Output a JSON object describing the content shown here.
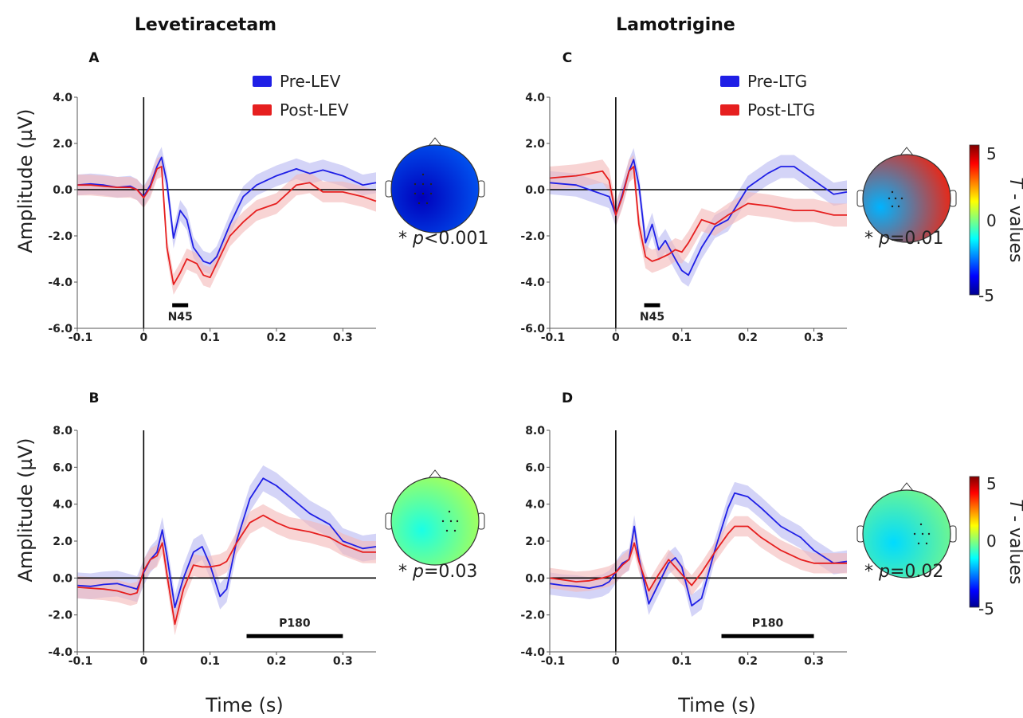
{
  "columns": {
    "left_title": "Levetiracetam",
    "right_title": "Lamotrigine"
  },
  "axis_titles": {
    "ylabel": "Amplitude (µV)",
    "xlabel": "Time (s)"
  },
  "colorbar": {
    "label_italic": "T",
    "label_rest": " - values",
    "ticks": [
      "5",
      "0",
      "-5"
    ],
    "range": [
      -5,
      5
    ]
  },
  "colors": {
    "pre": "#1f1fe6",
    "post": "#e61f1f",
    "pre_band": "#b8b8f2",
    "post_band": "#f4b8b8"
  },
  "chart_data": [
    {
      "panel": "A",
      "type": "line",
      "drug": "Levetiracetam",
      "xlim": [
        -0.1,
        0.35
      ],
      "ylim": [
        -6,
        4
      ],
      "xticks": [
        "-0.1",
        "0",
        "0.1",
        "0.2",
        "0.3"
      ],
      "yticks": [
        "4.0",
        "2.0",
        "0.0",
        "-2.0",
        "-4.0",
        "-6.0"
      ],
      "legend": [
        "Pre-LEV",
        "Post-LEV"
      ],
      "component": {
        "label": "N45",
        "start": 0.043,
        "end": 0.067
      },
      "pvalue": {
        "prefix": "* ",
        "p": "p",
        "rest": "<0.001"
      },
      "topo_t": -4.5,
      "series": [
        {
          "name": "Pre-LEV",
          "band": 0.45,
          "x": [
            -0.1,
            -0.08,
            -0.06,
            -0.04,
            -0.02,
            -0.01,
            0,
            0.01,
            0.02,
            0.027,
            0.035,
            0.045,
            0.055,
            0.065,
            0.075,
            0.09,
            0.1,
            0.11,
            0.13,
            0.15,
            0.17,
            0.2,
            0.23,
            0.25,
            0.27,
            0.3,
            0.33,
            0.35
          ],
          "y": [
            0.2,
            0.25,
            0.2,
            0.1,
            0.15,
            0,
            -0.3,
            0.2,
            1.0,
            1.4,
            0.3,
            -2.1,
            -0.9,
            -1.3,
            -2.5,
            -3.1,
            -3.2,
            -2.9,
            -1.5,
            -0.3,
            0.2,
            0.6,
            0.9,
            0.7,
            0.85,
            0.6,
            0.2,
            0.3
          ]
        },
        {
          "name": "Post-LEV",
          "band": 0.45,
          "x": [
            -0.1,
            -0.08,
            -0.06,
            -0.04,
            -0.02,
            -0.01,
            0,
            0.01,
            0.02,
            0.027,
            0.035,
            0.045,
            0.055,
            0.065,
            0.08,
            0.09,
            0.1,
            0.11,
            0.13,
            0.15,
            0.17,
            0.2,
            0.23,
            0.25,
            0.27,
            0.3,
            0.33,
            0.35
          ],
          "y": [
            0.2,
            0.2,
            0.15,
            0.1,
            0.1,
            0,
            -0.35,
            0.1,
            0.9,
            1.0,
            -2.5,
            -4.1,
            -3.6,
            -3.0,
            -3.2,
            -3.7,
            -3.8,
            -3.2,
            -2.0,
            -1.4,
            -0.9,
            -0.6,
            0.2,
            0.3,
            -0.1,
            -0.1,
            -0.3,
            -0.5
          ]
        }
      ]
    },
    {
      "panel": "B",
      "type": "line",
      "drug": "Levetiracetam",
      "xlim": [
        -0.1,
        0.35
      ],
      "ylim": [
        -4,
        8
      ],
      "xticks": [
        "-0.1",
        "0",
        "0.1",
        "0.2",
        "0.3"
      ],
      "yticks": [
        "8.0",
        "6.0",
        "4.0",
        "2.0",
        "0.0",
        "-2.0",
        "-4.0"
      ],
      "component": {
        "label": "P180",
        "start": 0.155,
        "end": 0.3
      },
      "pvalue": {
        "prefix": "* ",
        "p": "p",
        "rest": "=0.03"
      },
      "topo_t": -1.0,
      "series": [
        {
          "name": "Pre-LEV",
          "band": 0.7,
          "x": [
            -0.1,
            -0.08,
            -0.06,
            -0.04,
            -0.02,
            -0.01,
            0,
            0.01,
            0.02,
            0.028,
            0.035,
            0.047,
            0.06,
            0.075,
            0.088,
            0.1,
            0.115,
            0.125,
            0.14,
            0.16,
            0.18,
            0.2,
            0.22,
            0.25,
            0.28,
            0.3,
            0.33,
            0.35
          ],
          "y": [
            -0.4,
            -0.45,
            -0.35,
            -0.3,
            -0.5,
            -0.6,
            0.3,
            1.0,
            1.4,
            2.6,
            1.2,
            -1.6,
            0,
            1.4,
            1.7,
            0.7,
            -1.0,
            -0.6,
            2.0,
            4.3,
            5.4,
            5.0,
            4.4,
            3.5,
            2.9,
            2.0,
            1.6,
            1.7
          ]
        },
        {
          "name": "Post-LEV",
          "band": 0.6,
          "x": [
            -0.1,
            -0.08,
            -0.06,
            -0.04,
            -0.02,
            -0.01,
            0,
            0.01,
            0.02,
            0.028,
            0.035,
            0.047,
            0.06,
            0.075,
            0.088,
            0.1,
            0.115,
            0.125,
            0.14,
            0.16,
            0.18,
            0.2,
            0.22,
            0.25,
            0.28,
            0.3,
            0.33,
            0.35
          ],
          "y": [
            -0.5,
            -0.55,
            -0.6,
            -0.7,
            -0.9,
            -0.8,
            0.4,
            1.0,
            1.2,
            1.9,
            0.2,
            -2.5,
            -0.6,
            0.7,
            0.6,
            0.6,
            0.7,
            0.9,
            1.9,
            3.0,
            3.4,
            3.0,
            2.7,
            2.5,
            2.2,
            1.8,
            1.4,
            1.4
          ]
        }
      ]
    },
    {
      "panel": "C",
      "type": "line",
      "drug": "Lamotrigine",
      "xlim": [
        -0.1,
        0.35
      ],
      "ylim": [
        -6,
        4
      ],
      "xticks": [
        "-0.1",
        "0",
        "0.1",
        "0.2",
        "0.3"
      ],
      "yticks": [
        "4.0",
        "2.0",
        "0.0",
        "-2.0",
        "-4.0",
        "-6.0"
      ],
      "legend": [
        "Pre-LTG",
        "Post-LTG"
      ],
      "component": {
        "label": "N45",
        "start": 0.043,
        "end": 0.067
      },
      "pvalue": {
        "prefix": "* ",
        "p": "p",
        "rest": "=0.01"
      },
      "topo_t": -2.0,
      "series": [
        {
          "name": "Pre-LTG",
          "band": 0.5,
          "x": [
            -0.1,
            -0.08,
            -0.06,
            -0.04,
            -0.02,
            -0.01,
            0,
            0.01,
            0.02,
            0.027,
            0.035,
            0.045,
            0.055,
            0.065,
            0.075,
            0.09,
            0.1,
            0.11,
            0.13,
            0.15,
            0.17,
            0.2,
            0.23,
            0.25,
            0.27,
            0.3,
            0.33,
            0.35
          ],
          "y": [
            0.3,
            0.25,
            0.2,
            0,
            -0.2,
            -0.3,
            -1.1,
            -0.2,
            0.8,
            1.3,
            0.2,
            -2.3,
            -1.5,
            -2.6,
            -2.2,
            -3.0,
            -3.5,
            -3.7,
            -2.5,
            -1.6,
            -1.3,
            0.1,
            0.7,
            1.0,
            1.0,
            0.4,
            -0.2,
            -0.1
          ]
        },
        {
          "name": "Post-LTG",
          "band": 0.5,
          "x": [
            -0.1,
            -0.08,
            -0.06,
            -0.04,
            -0.02,
            -0.01,
            0,
            0.01,
            0.02,
            0.027,
            0.035,
            0.045,
            0.055,
            0.065,
            0.08,
            0.09,
            0.1,
            0.11,
            0.13,
            0.15,
            0.17,
            0.2,
            0.23,
            0.25,
            0.27,
            0.3,
            0.33,
            0.35
          ],
          "y": [
            0.5,
            0.55,
            0.6,
            0.7,
            0.8,
            0.4,
            -1.1,
            -0.3,
            0.8,
            1.0,
            -1.5,
            -2.9,
            -3.1,
            -3.0,
            -2.8,
            -2.6,
            -2.7,
            -2.3,
            -1.3,
            -1.5,
            -1.1,
            -0.6,
            -0.7,
            -0.8,
            -0.9,
            -0.9,
            -1.1,
            -1.1
          ]
        }
      ]
    },
    {
      "panel": "D",
      "type": "line",
      "drug": "Lamotrigine",
      "xlim": [
        -0.1,
        0.35
      ],
      "ylim": [
        -4,
        8
      ],
      "xticks": [
        "-0.1",
        "0",
        "0.1",
        "0.2",
        "0.3"
      ],
      "yticks": [
        "8.0",
        "6.0",
        "4.0",
        "2.0",
        "0.0",
        "-2.0",
        "-4.0"
      ],
      "component": {
        "label": "P180",
        "start": 0.16,
        "end": 0.3
      },
      "pvalue": {
        "prefix": "* ",
        "p": "p",
        "rest": "=0.02"
      },
      "topo_t": -1.6,
      "series": [
        {
          "name": "Pre-LTG",
          "band": 0.6,
          "x": [
            -0.1,
            -0.08,
            -0.06,
            -0.04,
            -0.02,
            -0.01,
            0,
            0.01,
            0.02,
            0.028,
            0.035,
            0.05,
            0.065,
            0.08,
            0.09,
            0.1,
            0.115,
            0.13,
            0.15,
            0.17,
            0.18,
            0.2,
            0.22,
            0.25,
            0.28,
            0.3,
            0.33,
            0.35
          ],
          "y": [
            -0.3,
            -0.4,
            -0.45,
            -0.55,
            -0.4,
            -0.2,
            0.3,
            0.8,
            1.0,
            2.8,
            1.1,
            -1.4,
            -0.3,
            0.8,
            1.1,
            0.6,
            -1.5,
            -1.1,
            1.5,
            3.8,
            4.6,
            4.4,
            3.8,
            2.8,
            2.2,
            1.5,
            0.8,
            0.9
          ]
        },
        {
          "name": "Post-LTG",
          "band": 0.55,
          "x": [
            -0.1,
            -0.08,
            -0.06,
            -0.04,
            -0.02,
            -0.01,
            0,
            0.01,
            0.02,
            0.028,
            0.035,
            0.05,
            0.065,
            0.08,
            0.09,
            0.1,
            0.115,
            0.13,
            0.15,
            0.17,
            0.18,
            0.2,
            0.22,
            0.25,
            0.28,
            0.3,
            0.33,
            0.35
          ],
          "y": [
            0,
            -0.1,
            -0.2,
            -0.15,
            0,
            0.1,
            0.3,
            0.7,
            1.0,
            1.9,
            0.9,
            -0.7,
            0.2,
            1.0,
            0.6,
            0.2,
            -0.4,
            0.3,
            1.4,
            2.4,
            2.8,
            2.8,
            2.2,
            1.5,
            1.0,
            0.8,
            0.8,
            0.8
          ]
        }
      ]
    }
  ]
}
